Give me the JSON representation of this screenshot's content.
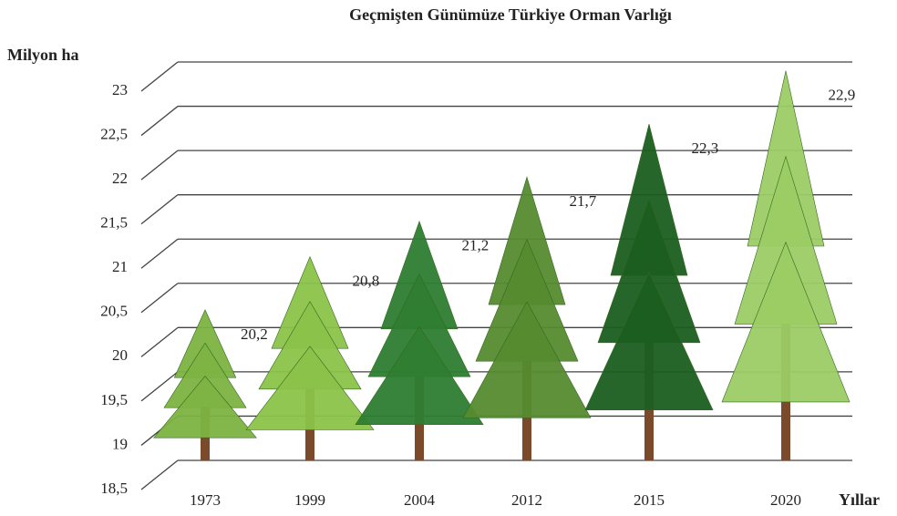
{
  "chart_data": {
    "type": "pictograph",
    "title": "Geçmişten Günümüze Türkiye Orman Varlığı",
    "y_label": "Milyon ha",
    "x_label": "Yıllar",
    "categories": [
      "1973",
      "1999",
      "2004",
      "2012",
      "2015",
      "2020"
    ],
    "values": [
      20.2,
      20.8,
      21.2,
      21.7,
      22.3,
      22.9
    ],
    "value_labels": [
      "20,2",
      "20,8",
      "21,2",
      "21,7",
      "22,3",
      "22,9"
    ],
    "colors": [
      "#7cb342",
      "#8bc34a",
      "#2e7d32",
      "#558b2f",
      "#1b5e20",
      "#9ccc65"
    ],
    "ylim": [
      18.5,
      23
    ],
    "yticks": [
      {
        "value": 18.5,
        "label": "18,5"
      },
      19,
      {
        "value": 19.5,
        "label": "19,5"
      },
      20,
      {
        "value": 20.5,
        "label": "20,5"
      },
      21,
      {
        "value": 21.5,
        "label": "21,5"
      },
      22,
      {
        "value": 22.5,
        "label": "22,5"
      },
      23
    ],
    "grid": true
  }
}
